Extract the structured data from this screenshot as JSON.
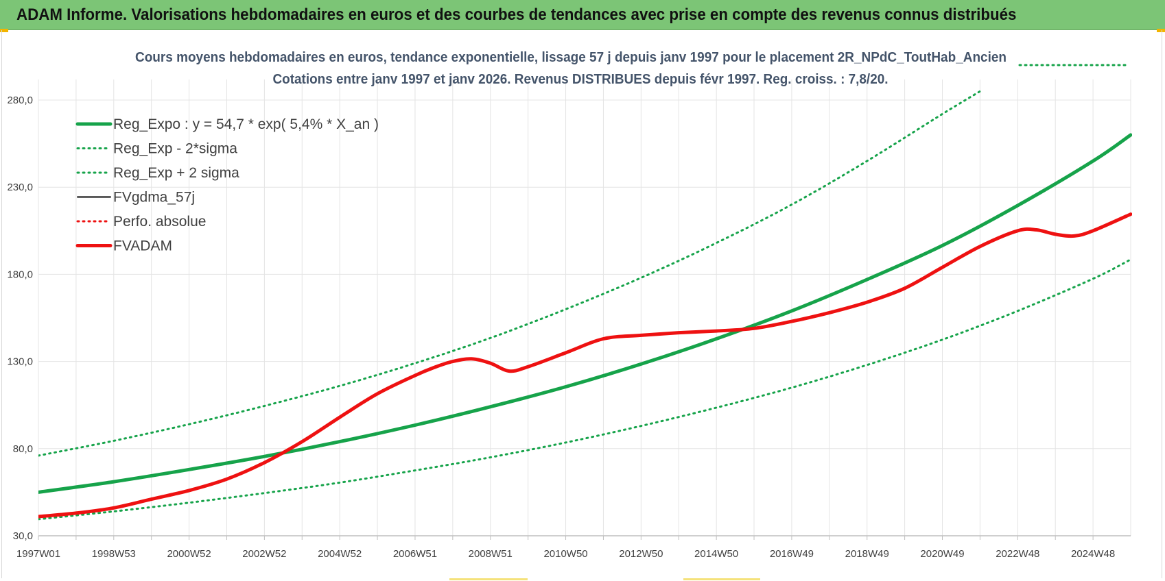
{
  "banner": {
    "title": "ADAM Informe. Valorisations hebdomadaires en euros et des courbes de tendances avec prise en compte des revenus connus distribués"
  },
  "colors": {
    "banner": "#7cc576",
    "green": "#16a34a",
    "red": "#ee1111",
    "black": "#000000",
    "grid": "#e4e4e4"
  },
  "chart_data": {
    "type": "line",
    "title": "Cours moyens hebdomadaires en euros, tendance exponentielle, lissage 57 j depuis janv 1997  pour le placement 2R_NPdC_ToutHab_Ancien",
    "subtitle": "Cotations entre janv 1997 et janv 2026. Revenus DISTRIBUES depuis févr 1997. Reg. croiss. : 7,8/20.",
    "ylim": [
      30,
      280
    ],
    "yticks": [
      "30,0",
      "80,0",
      "130,0",
      "180,0",
      "230,0",
      "280,0"
    ],
    "ytick_values": [
      30,
      80,
      130,
      180,
      230,
      280
    ],
    "xlim": [
      1997.0,
      2026.0
    ],
    "xticks": [
      "1997W01",
      "1998W53",
      "2000W52",
      "2002W52",
      "2004W52",
      "2006W51",
      "2008W51",
      "2010W50",
      "2012W50",
      "2014W50",
      "2016W49",
      "2018W49",
      "2020W49",
      "2022W48",
      "2024W48"
    ],
    "xtick_values": [
      1997.0,
      1999.0,
      2001.0,
      2003.0,
      2005.0,
      2007.0,
      2009.0,
      2011.0,
      2013.0,
      2015.0,
      2017.0,
      2019.0,
      2021.0,
      2023.0,
      2025.0
    ],
    "grid": true,
    "legend_position": "top-left",
    "series": [
      {
        "name": "Reg_Expo : y = 54,7 * exp( 5,4% *  X_an )",
        "style": "solid-thick",
        "color": "#16a34a",
        "x": [
          1997.0,
          1999.0,
          2001.0,
          2003.0,
          2005.0,
          2007.0,
          2009.0,
          2011.0,
          2013.0,
          2015.0,
          2017.0,
          2019.0,
          2021.0,
          2023.0,
          2025.0,
          2026.0
        ],
        "values": [
          55.0,
          61.0,
          68.0,
          75.5,
          84.0,
          93.5,
          104.0,
          115.5,
          128.5,
          143.0,
          159.0,
          177.0,
          196.5,
          219.5,
          245.0,
          260.0
        ]
      },
      {
        "name": "Reg_Exp - 2*sigma",
        "style": "dotted",
        "color": "#16a34a",
        "x": [
          1997.0,
          1999.0,
          2001.0,
          2003.0,
          2005.0,
          2007.0,
          2009.0,
          2011.0,
          2013.0,
          2015.0,
          2017.0,
          2019.0,
          2021.0,
          2023.0,
          2025.0,
          2026.0
        ],
        "values": [
          39.5,
          44.0,
          49.0,
          54.5,
          60.5,
          67.5,
          75.0,
          83.5,
          93.0,
          103.5,
          115.0,
          128.0,
          142.5,
          159.0,
          177.5,
          188.5
        ]
      },
      {
        "name": "Reg_Exp + 2 sigma",
        "style": "dotted",
        "color": "#16a34a",
        "x": [
          1997.0,
          1999.0,
          2001.0,
          2003.0,
          2005.0,
          2007.0,
          2009.0,
          2011.0,
          2013.0,
          2015.0,
          2017.0,
          2019.0,
          2021.0,
          2022.0
        ],
        "values": [
          76.0,
          84.5,
          94.0,
          104.5,
          116.0,
          129.0,
          143.5,
          160.0,
          178.0,
          198.0,
          220.0,
          245.0,
          272.0,
          285.0
        ]
      },
      {
        "name": "FVgdma_57j",
        "style": "solid",
        "color": "#000000",
        "x": [
          1997.0,
          1998.0,
          1999.0,
          2000.0,
          2001.0,
          2002.0,
          2003.0,
          2004.0,
          2005.0,
          2006.0,
          2007.0,
          2007.5,
          2008.0,
          2008.5,
          2009.0,
          2009.5,
          2010.0,
          2011.0,
          2012.0,
          2013.0,
          2014.0,
          2015.0,
          2016.0,
          2017.0,
          2018.0,
          2019.0,
          2020.0,
          2021.0,
          2022.0,
          2023.0,
          2023.5,
          2024.0,
          2024.5,
          2025.0,
          2026.0
        ],
        "values": [
          41.0,
          43.0,
          46.0,
          51.0,
          56.0,
          62.5,
          72.0,
          84.0,
          98.0,
          111.5,
          122.0,
          126.5,
          130.0,
          131.5,
          129.0,
          124.5,
          127.0,
          135.0,
          143.0,
          145.0,
          146.5,
          147.5,
          149.0,
          153.0,
          158.0,
          164.0,
          172.0,
          184.0,
          196.0,
          205.0,
          205.5,
          203.0,
          202.0,
          205.0,
          214.5
        ]
      },
      {
        "name": "Perfo. absolue",
        "style": "dotted",
        "color": "#ee1111",
        "x": [
          1997.0,
          1998.0,
          1999.0,
          2000.0,
          2001.0,
          2002.0,
          2003.0,
          2004.0,
          2005.0,
          2006.0,
          2007.0,
          2007.5,
          2008.0,
          2008.5,
          2009.0,
          2009.5,
          2010.0,
          2011.0,
          2012.0,
          2013.0,
          2014.0,
          2015.0,
          2016.0,
          2017.0,
          2018.0,
          2019.0,
          2020.0,
          2021.0,
          2022.0,
          2023.0,
          2023.5,
          2024.0,
          2024.5,
          2025.0,
          2026.0
        ],
        "values": [
          41.0,
          43.0,
          46.0,
          51.0,
          56.0,
          62.5,
          72.0,
          84.0,
          98.0,
          111.5,
          122.0,
          126.5,
          130.0,
          131.5,
          129.0,
          124.5,
          127.0,
          135.0,
          143.0,
          145.0,
          146.5,
          147.5,
          149.0,
          153.0,
          158.0,
          164.0,
          172.0,
          184.0,
          196.0,
          205.0,
          205.5,
          203.0,
          202.0,
          205.0,
          214.5
        ]
      },
      {
        "name": "FVADAM",
        "style": "solid-thick",
        "color": "#ee1111",
        "x": [
          1997.0,
          1998.0,
          1999.0,
          2000.0,
          2001.0,
          2002.0,
          2003.0,
          2004.0,
          2005.0,
          2006.0,
          2007.0,
          2007.5,
          2008.0,
          2008.5,
          2009.0,
          2009.5,
          2010.0,
          2011.0,
          2012.0,
          2013.0,
          2014.0,
          2015.0,
          2016.0,
          2017.0,
          2018.0,
          2019.0,
          2020.0,
          2021.0,
          2022.0,
          2023.0,
          2023.5,
          2024.0,
          2024.5,
          2025.0,
          2026.0
        ],
        "values": [
          41.0,
          43.0,
          46.0,
          51.0,
          56.0,
          62.5,
          72.0,
          84.0,
          98.0,
          111.5,
          122.0,
          126.5,
          130.0,
          131.5,
          129.0,
          124.5,
          127.0,
          135.0,
          143.0,
          145.0,
          146.5,
          147.5,
          149.0,
          153.0,
          158.0,
          164.0,
          172.0,
          184.0,
          196.0,
          205.0,
          205.5,
          203.0,
          202.0,
          205.0,
          214.5
        ]
      }
    ]
  }
}
